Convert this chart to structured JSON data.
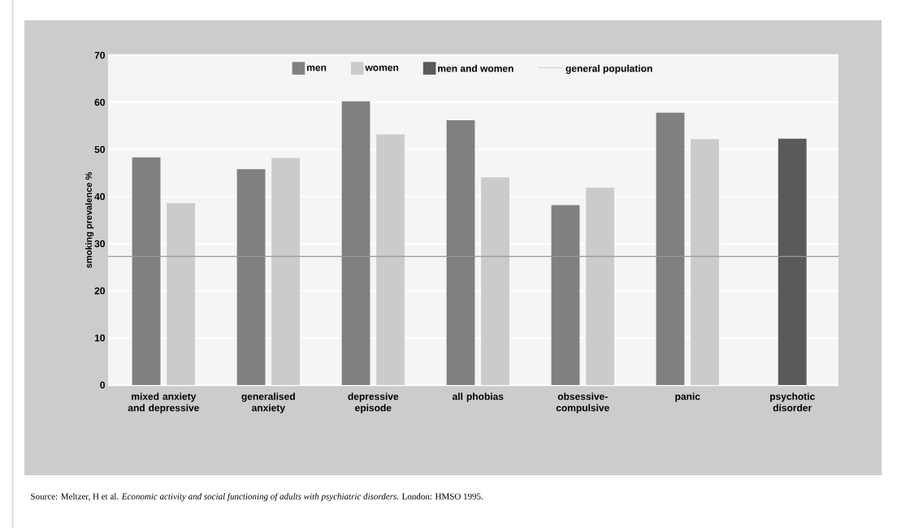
{
  "chart_data": {
    "type": "bar",
    "ylabel": "smoking prevalence %",
    "categories": [
      "mixed anxiety and depressive",
      "generalised anxiety",
      "depressive episode",
      "all phobias",
      "obsessive-compulsive",
      "panic",
      "psychotic disorder"
    ],
    "series": [
      {
        "name": "men",
        "color": "#808080",
        "values": [
          48.3,
          45.8,
          60.2,
          56.2,
          38.2,
          57.8,
          null
        ]
      },
      {
        "name": "women",
        "color": "#cbcbcb",
        "values": [
          38.6,
          48.2,
          53.2,
          44.1,
          41.9,
          52.2,
          null
        ]
      },
      {
        "name": "men and women",
        "color": "#5a5a5a",
        "values": [
          null,
          null,
          null,
          null,
          null,
          null,
          52.3
        ]
      }
    ],
    "ylim": [
      0,
      70
    ],
    "yticks": [
      0,
      10,
      20,
      30,
      40,
      50,
      60,
      70
    ],
    "ref_lines": [
      {
        "axis": "y",
        "value": 27.3,
        "label": "general population",
        "color": "#999999"
      }
    ],
    "grid": "y",
    "legend": "top",
    "annotations": [
      "Source: Meltzer, H et al. *Economic activity and social functioning of adults with psychiatric disorders.* London: HMSO 1995."
    ]
  }
}
